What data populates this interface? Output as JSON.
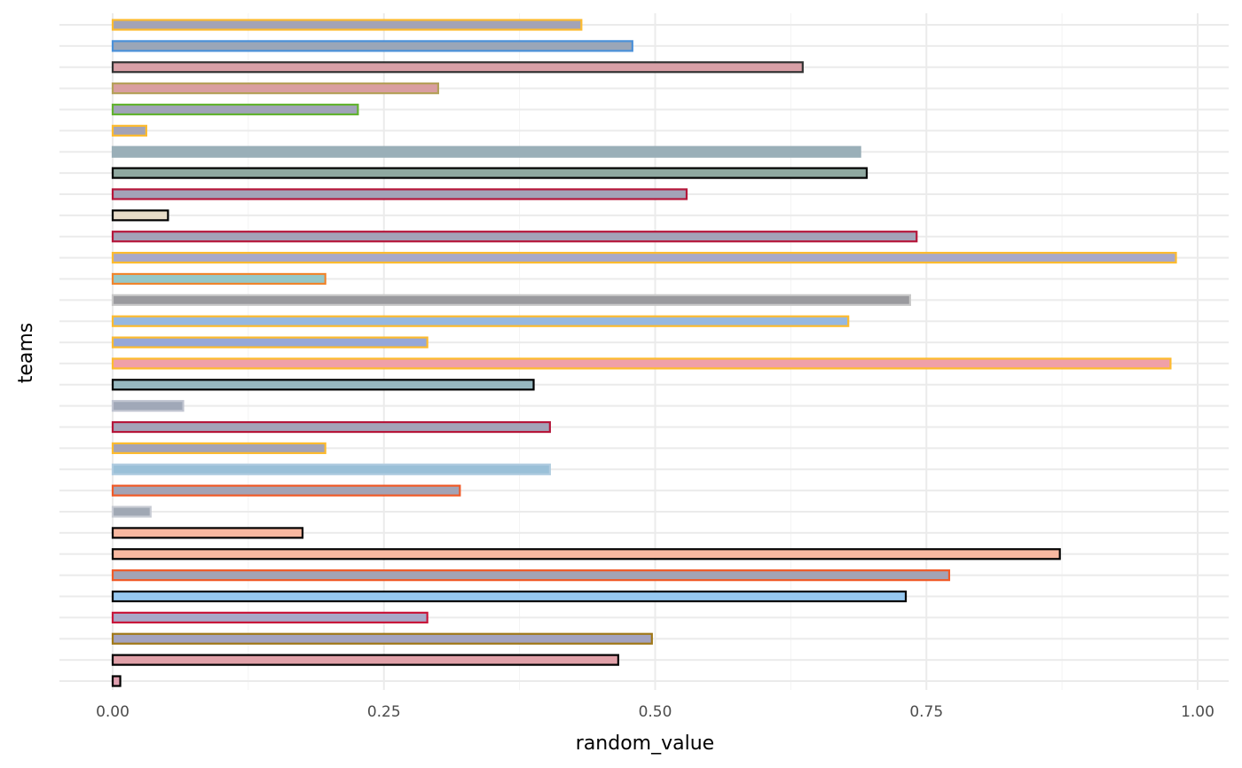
{
  "chart_data": {
    "type": "bar",
    "orientation": "horizontal",
    "xlabel": "random_value",
    "ylabel": "teams",
    "xlim": [
      -0.05,
      1.03
    ],
    "x_ticks": [
      0,
      0.25,
      0.5,
      0.75,
      1
    ],
    "x_tick_labels": [
      "0.00",
      "0.25",
      "0.50",
      "0.75",
      "1.00"
    ],
    "grid": true,
    "legend": "none",
    "bars": [
      {
        "value": 0.432,
        "fill": "#a3a3b5",
        "stroke": "#fdbb2f"
      },
      {
        "value": 0.479,
        "fill": "#9aa6b8",
        "stroke": "#4a90d9"
      },
      {
        "value": 0.636,
        "fill": "#d9a0a7",
        "stroke": "#333333"
      },
      {
        "value": 0.3,
        "fill": "#d99ea0",
        "stroke": "#b5a05a"
      },
      {
        "value": 0.226,
        "fill": "#a0a3b8",
        "stroke": "#62b22f"
      },
      {
        "value": 0.031,
        "fill": "#a3a3b5",
        "stroke": "#fdbb2f"
      },
      {
        "value": 0.689,
        "fill": "#9aafb8",
        "stroke": "#9aafb8"
      },
      {
        "value": 0.695,
        "fill": "#8fa8a0",
        "stroke": "#000000"
      },
      {
        "value": 0.529,
        "fill": "#a3a3b8",
        "stroke": "#b5163a"
      },
      {
        "value": 0.051,
        "fill": "#e8dcc8",
        "stroke": "#000000"
      },
      {
        "value": 0.741,
        "fill": "#a3a3b8",
        "stroke": "#b5163a"
      },
      {
        "value": 0.98,
        "fill": "#a8a8c8",
        "stroke": "#fdbb2f"
      },
      {
        "value": 0.196,
        "fill": "#96c8c8",
        "stroke": "#f0852d"
      },
      {
        "value": 0.735,
        "fill": "#9a9a9e",
        "stroke": "#c8c8c8"
      },
      {
        "value": 0.678,
        "fill": "#96b8e0",
        "stroke": "#fdbb2f"
      },
      {
        "value": 0.29,
        "fill": "#96a8d8",
        "stroke": "#fdbb2f"
      },
      {
        "value": 0.975,
        "fill": "#f0a0a8",
        "stroke": "#fdbb2f"
      },
      {
        "value": 0.388,
        "fill": "#96b8c0",
        "stroke": "#000000"
      },
      {
        "value": 0.065,
        "fill": "#a0a8b8",
        "stroke": "#c0c4d0"
      },
      {
        "value": 0.403,
        "fill": "#a3a3b8",
        "stroke": "#b5163a"
      },
      {
        "value": 0.196,
        "fill": "#a3a3b5",
        "stroke": "#fdbb2f"
      },
      {
        "value": 0.403,
        "fill": "#9ac0d8",
        "stroke": "#b0cce0"
      },
      {
        "value": 0.32,
        "fill": "#a3a3b5",
        "stroke": "#f05a28"
      },
      {
        "value": 0.035,
        "fill": "#a0a8b4",
        "stroke": "#c8ccd4"
      },
      {
        "value": 0.175,
        "fill": "#f8b8a0",
        "stroke": "#000000"
      },
      {
        "value": 0.873,
        "fill": "#f8b8a0",
        "stroke": "#000000"
      },
      {
        "value": 0.771,
        "fill": "#a3a3b5",
        "stroke": "#f05a28"
      },
      {
        "value": 0.731,
        "fill": "#96c8f0",
        "stroke": "#000000"
      },
      {
        "value": 0.29,
        "fill": "#a8a8c8",
        "stroke": "#c8163a"
      },
      {
        "value": 0.497,
        "fill": "#a3a3c0",
        "stroke": "#a07818"
      },
      {
        "value": 0.466,
        "fill": "#e0a0a8",
        "stroke": "#000000"
      },
      {
        "value": 0.007,
        "fill": "#e0a0b0",
        "stroke": "#000000"
      }
    ]
  }
}
